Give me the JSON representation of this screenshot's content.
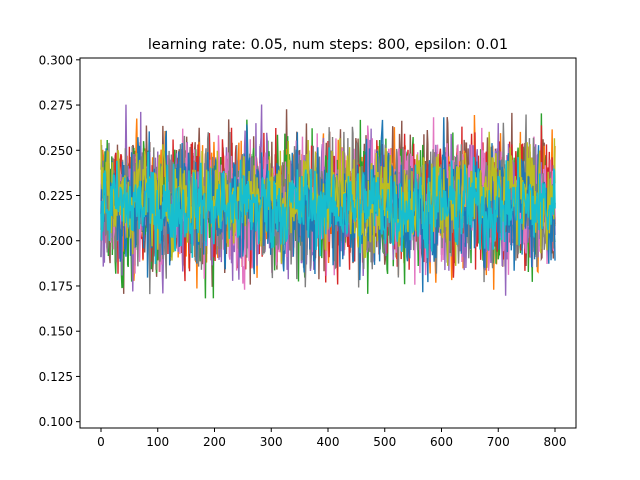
{
  "chart_data": {
    "type": "line",
    "title": "learning rate: 0.05, num steps: 800, epsilon: 0.01",
    "xlabel": "",
    "ylabel": "",
    "xlim": [
      -37,
      837
    ],
    "ylim": [
      0.0965,
      0.301
    ],
    "x_ticks": [
      0,
      100,
      200,
      300,
      400,
      500,
      600,
      700,
      800
    ],
    "y_ticks": [
      0.1,
      0.125,
      0.15,
      0.175,
      0.2,
      0.225,
      0.25,
      0.275,
      0.3
    ],
    "x_tick_labels": [
      "0",
      "100",
      "200",
      "300",
      "400",
      "500",
      "600",
      "700",
      "800"
    ],
    "y_tick_labels": [
      "0.100",
      "0.125",
      "0.150",
      "0.175",
      "0.200",
      "0.225",
      "0.250",
      "0.275",
      "0.300"
    ],
    "grid": false,
    "legend": "none",
    "num_points_per_series": 801,
    "series": [
      {
        "color": "#8c564b",
        "center": 0.222,
        "spread": 0.048
      },
      {
        "color": "#ff7f0e",
        "center": 0.221,
        "spread": 0.046
      },
      {
        "color": "#2ca02c",
        "center": 0.22,
        "spread": 0.048
      },
      {
        "color": "#d62728",
        "center": 0.221,
        "spread": 0.047
      },
      {
        "color": "#9467bd",
        "center": 0.22,
        "spread": 0.046
      },
      {
        "color": "#e377c2",
        "center": 0.222,
        "spread": 0.045
      },
      {
        "color": "#7f7f7f",
        "center": 0.221,
        "spread": 0.047
      },
      {
        "color": "#1f77b4",
        "center": 0.22,
        "spread": 0.044
      },
      {
        "color": "#bcbd22",
        "center": 0.225,
        "spread": 0.036
      },
      {
        "color": "#17becf",
        "center": 0.219,
        "spread": 0.031
      }
    ]
  }
}
